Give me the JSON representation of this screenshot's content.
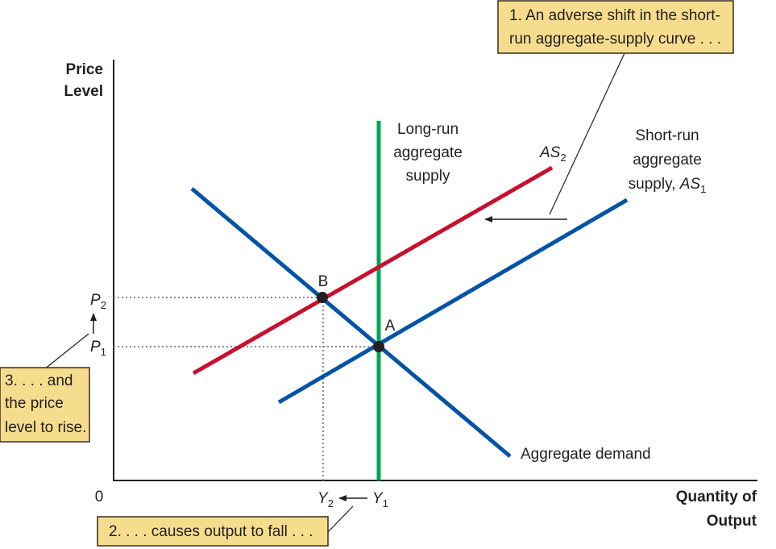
{
  "axes": {
    "y_title_line1": "Price",
    "y_title_line2": "Level",
    "x_title_line1": "Quantity of",
    "x_title_line2": "Output",
    "origin": "0"
  },
  "curves": {
    "long_run_line1": "Long-run",
    "long_run_line2": "aggregate",
    "long_run_line3": "supply",
    "short_run_line1": "Short-run",
    "short_run_line2": "aggregate",
    "short_run_line3_prefix": "supply, ",
    "short_run_line3_italic": "AS",
    "short_run_line3_sub": "1",
    "as2_italic": "AS",
    "as2_sub": "2",
    "aggregate_demand": "Aggregate demand"
  },
  "points": {
    "a": "A",
    "b": "B"
  },
  "ticks": {
    "p2_main": "P",
    "p2_sub": "2",
    "p1_main": "P",
    "p1_sub": "1",
    "y2_main": "Y",
    "y2_sub": "2",
    "y1_main": "Y",
    "y1_sub": "1"
  },
  "callouts": {
    "c1_line1": "1. An adverse shift in the short-",
    "c1_line2": "run aggregate-supply curve . . .",
    "c2_line1": "2. . . . causes output to fall . . .",
    "c3_line1": "3. . . . and",
    "c3_line2": "the price",
    "c3_line3": "level to rise."
  },
  "colors": {
    "long_run_supply": "#00a650",
    "short_run_supply": "#0054a6",
    "aggregate_demand": "#0054a6",
    "shifted_supply": "#c8102e",
    "callout_fill": "#f6dd8e"
  }
}
